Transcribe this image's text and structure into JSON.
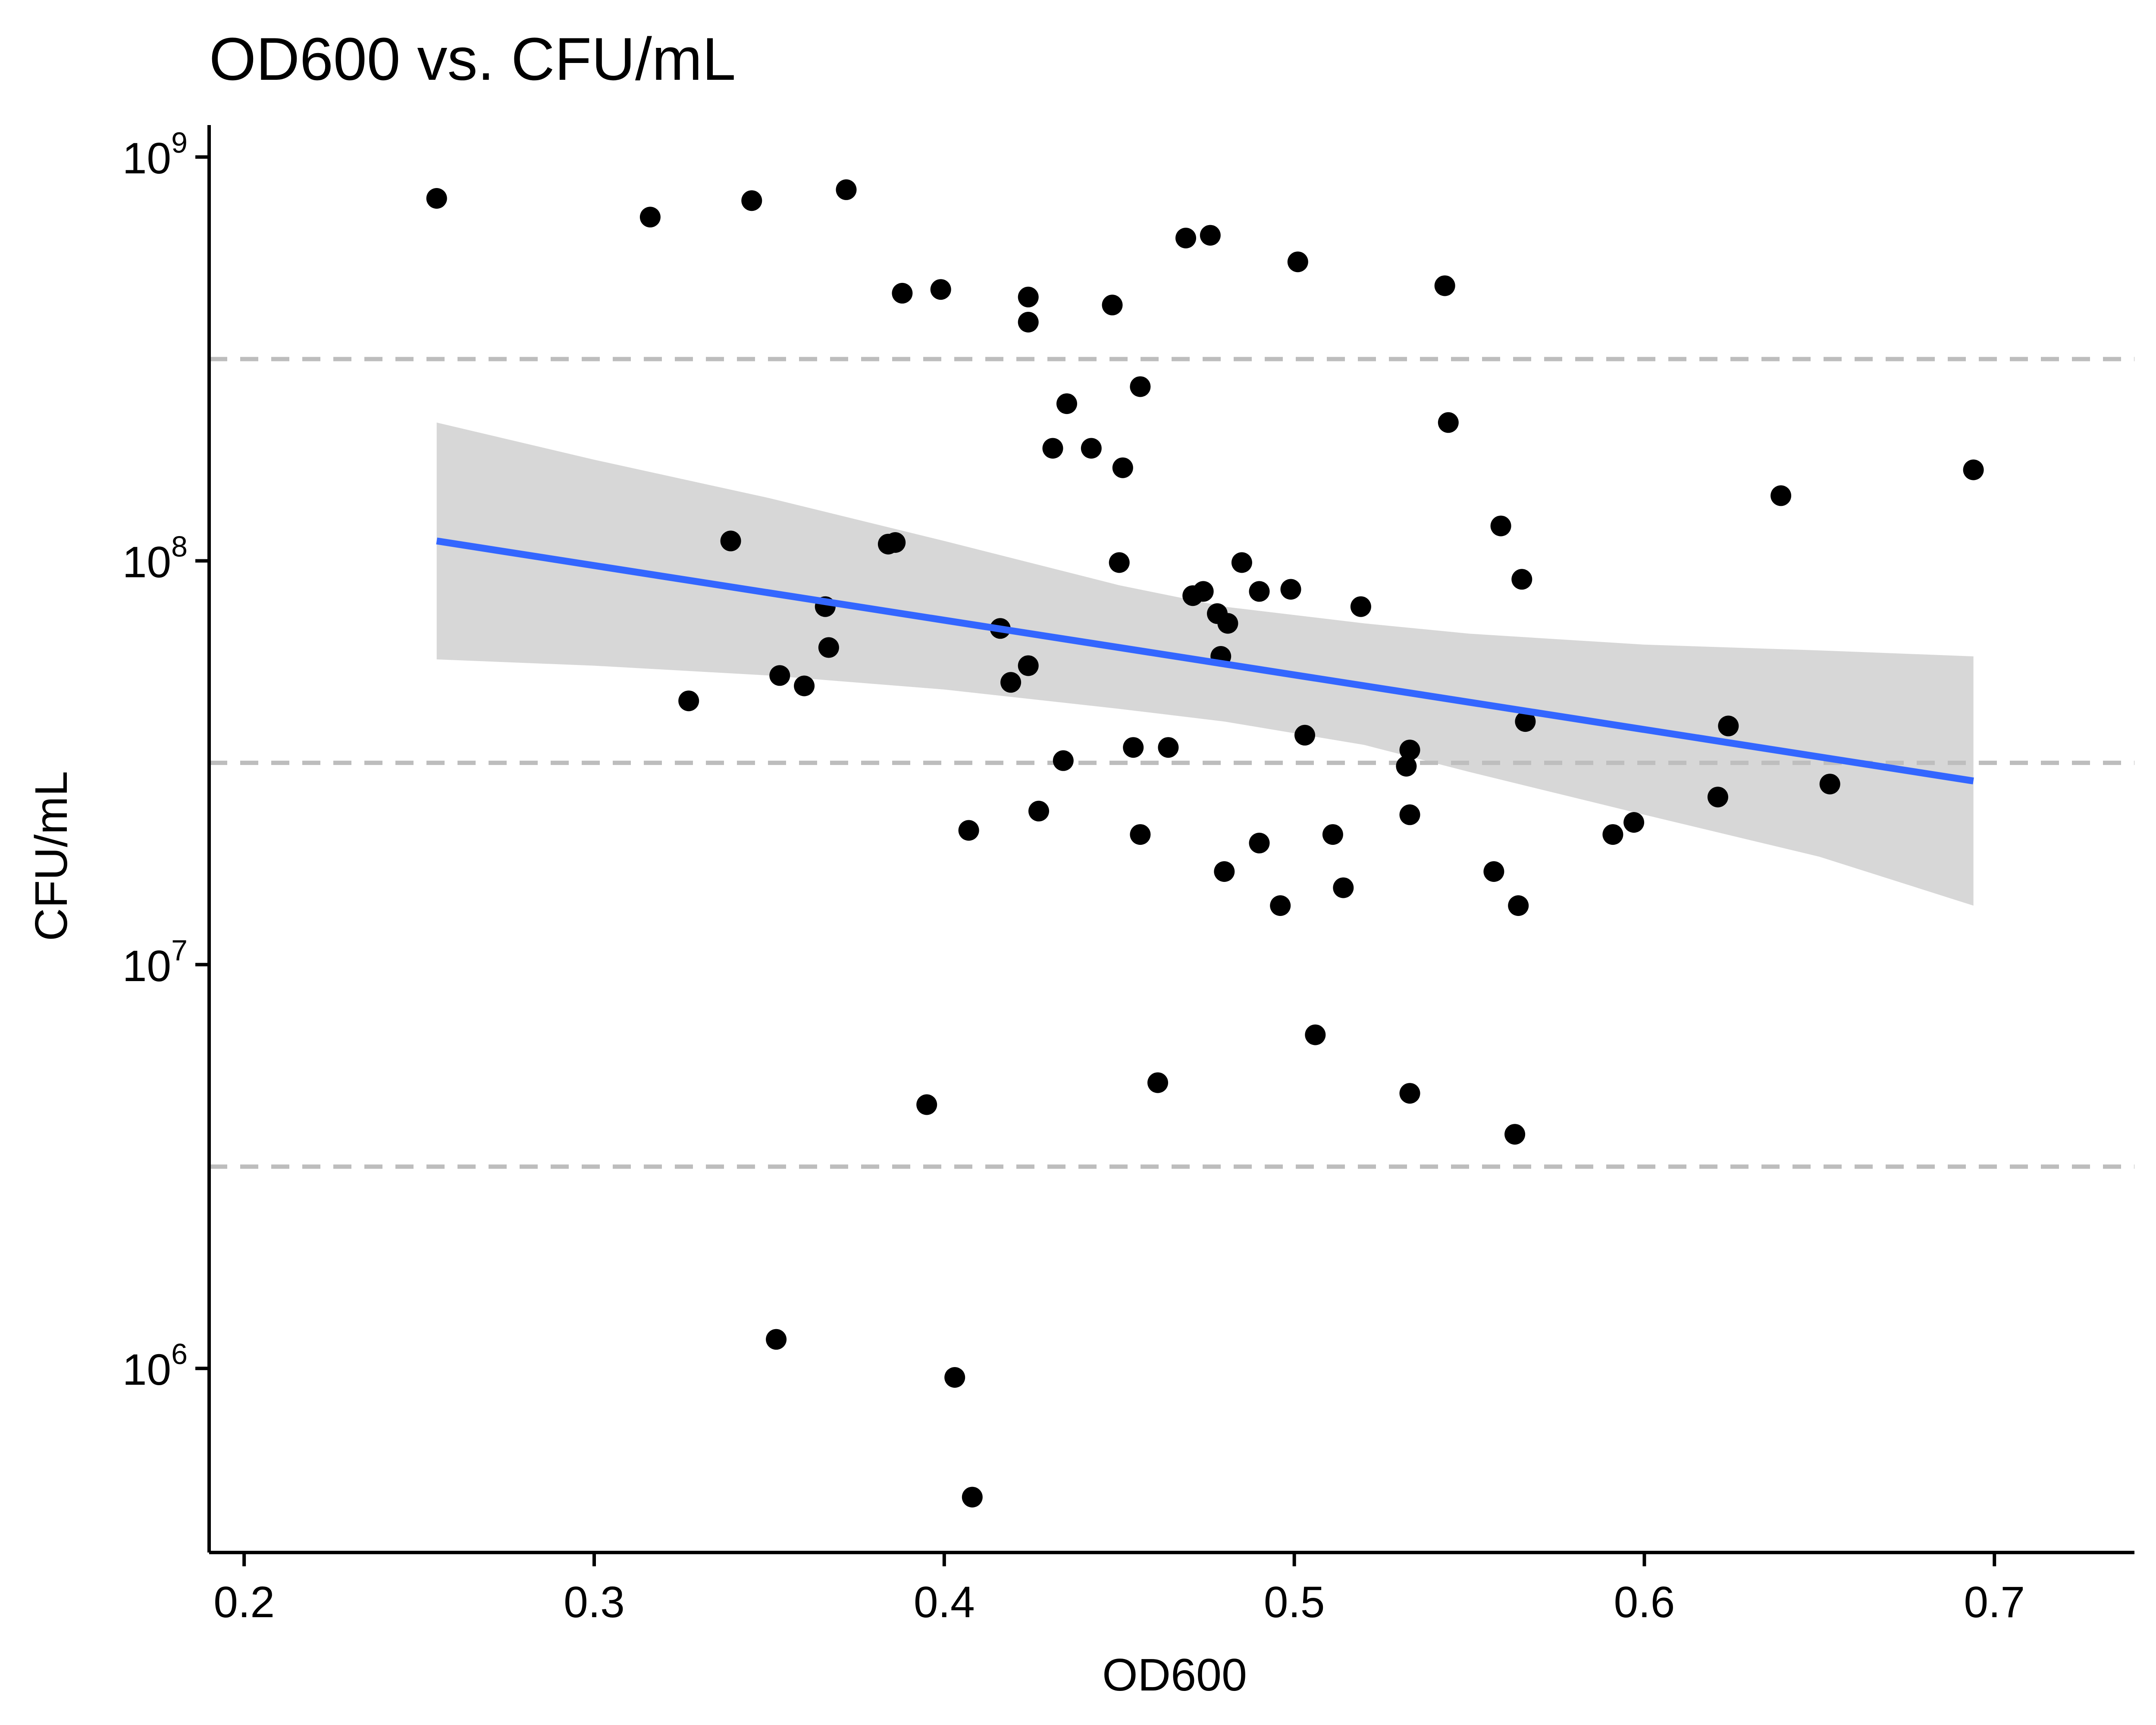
{
  "chart_data": {
    "type": "scatter",
    "title": "OD600 vs. CFU/mL",
    "xlabel": "OD600",
    "ylabel": "CFU/mL",
    "x_scale": "linear",
    "y_scale": "log10",
    "xlim": [
      0.19,
      0.74
    ],
    "ylim": [
      350000,
      1200000000
    ],
    "x_ticks": [
      "0.2",
      "0.3",
      "0.4",
      "0.5",
      "0.6",
      "0.7"
    ],
    "y_ticks": [
      {
        "base": "10",
        "exp": "6"
      },
      {
        "base": "10",
        "exp": "7"
      },
      {
        "base": "10",
        "exp": "8"
      },
      {
        "base": "10",
        "exp": "9"
      }
    ],
    "y_ref_lines": [
      3160000,
      31600000,
      316000000
    ],
    "legend": "none",
    "grid": false,
    "colors": {
      "points": "#000000",
      "fit_line": "#3366FF",
      "confidence_band": "#bebebe",
      "ref_lines": "#bdbdbd",
      "axis": "#000000"
    },
    "points": [
      [
        0.255,
        790000000
      ],
      [
        0.316,
        710000000
      ],
      [
        0.345,
        780000000
      ],
      [
        0.372,
        830000000
      ],
      [
        0.388,
        460000000
      ],
      [
        0.399,
        470000000
      ],
      [
        0.424,
        450000000
      ],
      [
        0.424,
        390000000
      ],
      [
        0.448,
        430000000
      ],
      [
        0.469,
        630000000
      ],
      [
        0.476,
        640000000
      ],
      [
        0.501,
        550000000
      ],
      [
        0.543,
        480000000
      ],
      [
        0.456,
        270000000
      ],
      [
        0.435,
        245000000
      ],
      [
        0.431,
        190000000
      ],
      [
        0.442,
        190000000
      ],
      [
        0.451,
        170000000
      ],
      [
        0.544,
        220000000
      ],
      [
        0.639,
        145000000
      ],
      [
        0.694,
        168000000
      ],
      [
        0.339,
        112000000
      ],
      [
        0.384,
        110000000
      ],
      [
        0.386,
        111000000
      ],
      [
        0.45,
        99000000
      ],
      [
        0.471,
        82000000
      ],
      [
        0.474,
        84000000
      ],
      [
        0.485,
        99000000
      ],
      [
        0.49,
        84000000
      ],
      [
        0.499,
        85000000
      ],
      [
        0.519,
        77000000
      ],
      [
        0.478,
        74000000
      ],
      [
        0.481,
        70000000
      ],
      [
        0.559,
        122000000
      ],
      [
        0.565,
        90000000
      ],
      [
        0.366,
        77000000
      ],
      [
        0.416,
        68000000
      ],
      [
        0.367,
        61000000
      ],
      [
        0.479,
        58000000
      ],
      [
        0.424,
        55000000
      ],
      [
        0.353,
        52000000
      ],
      [
        0.36,
        49000000
      ],
      [
        0.419,
        50000000
      ],
      [
        0.327,
        45000000
      ],
      [
        0.503,
        37000000
      ],
      [
        0.454,
        34500000
      ],
      [
        0.464,
        34500000
      ],
      [
        0.434,
        32000000
      ],
      [
        0.533,
        34000000
      ],
      [
        0.532,
        31000000
      ],
      [
        0.566,
        40000000
      ],
      [
        0.624,
        39000000
      ],
      [
        0.653,
        28000000
      ],
      [
        0.621,
        26000000
      ],
      [
        0.427,
        24000000
      ],
      [
        0.533,
        23500000
      ],
      [
        0.407,
        21500000
      ],
      [
        0.456,
        21000000
      ],
      [
        0.49,
        20000000
      ],
      [
        0.511,
        21000000
      ],
      [
        0.591,
        21000000
      ],
      [
        0.597,
        22500000
      ],
      [
        0.48,
        17000000
      ],
      [
        0.514,
        15500000
      ],
      [
        0.557,
        17000000
      ],
      [
        0.496,
        14000000
      ],
      [
        0.564,
        14000000
      ],
      [
        0.506,
        6700000
      ],
      [
        0.461,
        5100000
      ],
      [
        0.395,
        4500000
      ],
      [
        0.533,
        4800000
      ],
      [
        0.563,
        3800000
      ],
      [
        0.352,
        1180000
      ],
      [
        0.403,
        950000
      ],
      [
        0.408,
        480000
      ]
    ],
    "fit": {
      "x": [
        0.255,
        0.694
      ],
      "y": [
        112000000,
        28500000
      ]
    },
    "confidence_band": {
      "x": [
        0.255,
        0.3,
        0.35,
        0.4,
        0.45,
        0.48,
        0.52,
        0.55,
        0.6,
        0.65,
        0.694
      ],
      "upper": [
        220000000,
        178000000,
        143000000,
        112000000,
        87000000,
        77000000,
        70000000,
        66000000,
        62000000,
        60000000,
        58000000
      ],
      "lower": [
        57000000,
        55000000,
        52000000,
        48000000,
        43000000,
        40000000,
        35000000,
        30000000,
        23500000,
        18500000,
        14000000
      ]
    }
  }
}
